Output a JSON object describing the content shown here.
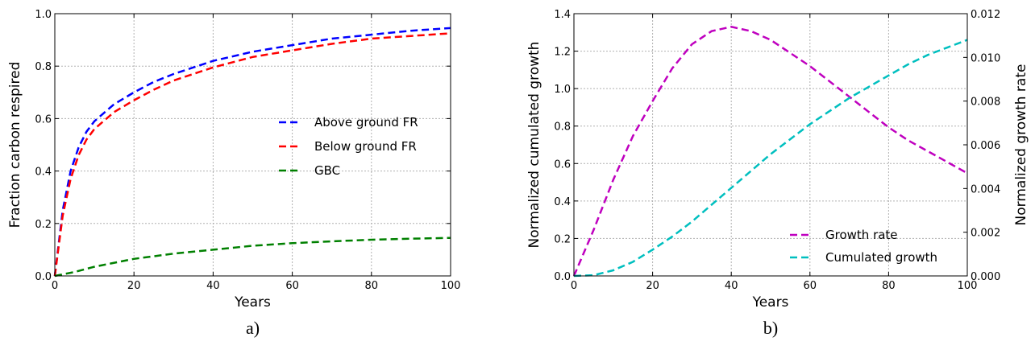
{
  "chart_data": [
    {
      "type": "line",
      "panel_label": "a)",
      "title": "",
      "xlabel": "Years",
      "ylabel": "Fraction carbon respired",
      "xlim": [
        0,
        100
      ],
      "ylim": [
        0,
        1.0
      ],
      "xticks": [
        "0",
        "20",
        "40",
        "60",
        "80",
        "100"
      ],
      "yticks": [
        "0.0",
        "0.2",
        "0.4",
        "0.6",
        "0.8",
        "1.0"
      ],
      "grid": true,
      "legend_position": "center-right",
      "series": [
        {
          "name": "Above ground FR",
          "color": "#0000ff",
          "x": [
            0,
            2,
            4,
            6,
            8,
            10,
            15,
            20,
            25,
            30,
            40,
            50,
            60,
            70,
            80,
            90,
            100
          ],
          "y": [
            0.0,
            0.25,
            0.4,
            0.49,
            0.55,
            0.59,
            0.655,
            0.7,
            0.74,
            0.77,
            0.82,
            0.855,
            0.88,
            0.905,
            0.92,
            0.935,
            0.945
          ]
        },
        {
          "name": "Below ground FR",
          "color": "#ff0000",
          "x": [
            0,
            2,
            4,
            6,
            8,
            10,
            15,
            20,
            25,
            30,
            40,
            50,
            60,
            70,
            80,
            90,
            100
          ],
          "y": [
            0.0,
            0.23,
            0.37,
            0.46,
            0.52,
            0.56,
            0.625,
            0.67,
            0.71,
            0.745,
            0.795,
            0.835,
            0.86,
            0.885,
            0.905,
            0.915,
            0.925
          ]
        },
        {
          "name": "GBC",
          "color": "#008000",
          "x": [
            0,
            5,
            10,
            20,
            30,
            40,
            50,
            60,
            70,
            80,
            90,
            100
          ],
          "y": [
            0.0,
            0.015,
            0.035,
            0.065,
            0.085,
            0.1,
            0.115,
            0.125,
            0.132,
            0.138,
            0.142,
            0.145
          ]
        }
      ]
    },
    {
      "type": "line",
      "panel_label": "b)",
      "title": "",
      "xlabel": "Years",
      "ylabel": "Normalized cumulated growth",
      "ylabel_right": "Normalized growth rate",
      "xlim": [
        0,
        100
      ],
      "ylim": [
        0,
        1.4
      ],
      "ylim_right": [
        0,
        0.012
      ],
      "xticks": [
        "0",
        "20",
        "40",
        "60",
        "80",
        "100"
      ],
      "yticks": [
        "0.0",
        "0.2",
        "0.4",
        "0.6",
        "0.8",
        "1.0",
        "1.2",
        "1.4"
      ],
      "yticks_right": [
        "0.000",
        "0.002",
        "0.004",
        "0.006",
        "0.008",
        "0.010",
        "0.012"
      ],
      "grid": true,
      "legend_position": "lower-right",
      "series": [
        {
          "name": "Growth rate",
          "color": "#bf00bf",
          "axis": "right",
          "x": [
            0,
            5,
            10,
            15,
            20,
            25,
            30,
            35,
            40,
            45,
            50,
            55,
            60,
            65,
            70,
            75,
            80,
            85,
            90,
            95,
            100
          ],
          "y": [
            0.0,
            0.0021,
            0.0044,
            0.0064,
            0.008,
            0.0095,
            0.0106,
            0.0112,
            0.0114,
            0.0112,
            0.0108,
            0.0102,
            0.0096,
            0.0089,
            0.0082,
            0.0075,
            0.0068,
            0.0062,
            0.0057,
            0.0052,
            0.0047
          ]
        },
        {
          "name": "Cumulated growth",
          "color": "#00bfbf",
          "axis": "left",
          "x": [
            0,
            5,
            10,
            15,
            20,
            25,
            30,
            35,
            40,
            45,
            50,
            55,
            60,
            65,
            70,
            75,
            80,
            85,
            90,
            95,
            100
          ],
          "y": [
            0.0,
            0.004,
            0.03,
            0.075,
            0.14,
            0.21,
            0.29,
            0.38,
            0.47,
            0.56,
            0.65,
            0.73,
            0.81,
            0.88,
            0.95,
            1.01,
            1.07,
            1.13,
            1.18,
            1.22,
            1.26
          ]
        }
      ]
    }
  ]
}
